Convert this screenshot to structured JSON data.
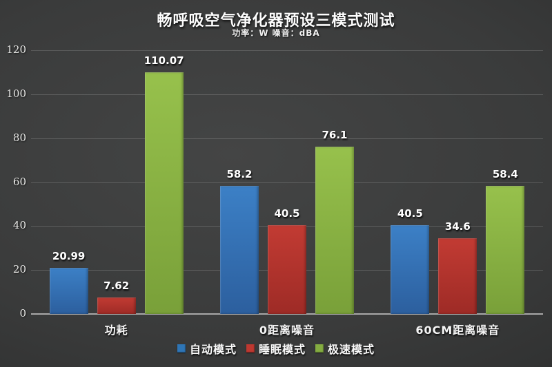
{
  "header": {
    "title": "畅呼吸空气净化器预设三模式测试",
    "subtitle": "功率：W  噪音：dBA"
  },
  "chart_data": {
    "type": "bar",
    "title": "畅呼吸空气净化器预设三模式测试",
    "subtitle": "功率：W  噪音：dBA",
    "categories": [
      "功耗",
      "0距离噪音",
      "60CM距离噪音"
    ],
    "series": [
      {
        "name": "自动模式",
        "color": "#2e75b6",
        "gradient_top": "#3c80c6",
        "gradient_bottom": "#2c5f9e",
        "values": [
          20.99,
          58.2,
          40.5
        ]
      },
      {
        "name": "睡眠模式",
        "color": "#be3830",
        "gradient_top": "#c23b33",
        "gradient_bottom": "#9e2b26",
        "values": [
          7.62,
          40.5,
          34.6
        ]
      },
      {
        "name": "极速模式",
        "color": "#84ac41",
        "gradient_top": "#97c14c",
        "gradient_bottom": "#79a039",
        "values": [
          110.07,
          76.1,
          58.4
        ]
      }
    ],
    "data_labels": [
      [
        "20.99",
        "58.2",
        "40.5"
      ],
      [
        "7.62",
        "40.5",
        "34.6"
      ],
      [
        "110.07",
        "76.1",
        "58.4"
      ]
    ],
    "ylim": [
      0,
      120
    ],
    "yticks": [
      0,
      20,
      40,
      60,
      80,
      100,
      120
    ],
    "grid": true,
    "legend_position": "bottom",
    "background": "dark-gray-vignette",
    "axis_color": "#a9a9a9",
    "gridline_color": "rgba(255,255,255,0.17)"
  }
}
